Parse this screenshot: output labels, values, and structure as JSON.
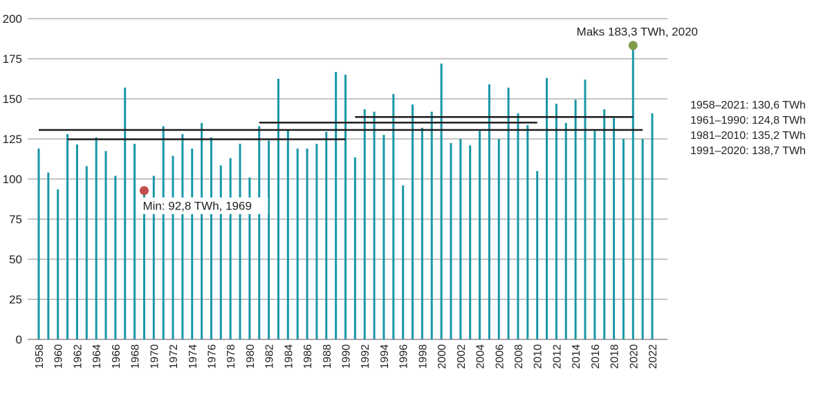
{
  "chart_data": {
    "type": "bar",
    "title": "",
    "xlabel": "",
    "ylabel": "",
    "ylim": [
      0,
      200
    ],
    "yticks": [
      0,
      25,
      50,
      75,
      100,
      125,
      150,
      175,
      200
    ],
    "grid": true,
    "x": [
      1958,
      1959,
      1960,
      1961,
      1962,
      1963,
      1964,
      1965,
      1966,
      1967,
      1968,
      1969,
      1970,
      1971,
      1972,
      1973,
      1974,
      1975,
      1976,
      1977,
      1978,
      1979,
      1980,
      1981,
      1982,
      1983,
      1984,
      1985,
      1986,
      1987,
      1988,
      1989,
      1990,
      1991,
      1992,
      1993,
      1994,
      1995,
      1996,
      1997,
      1998,
      1999,
      2000,
      2001,
      2002,
      2003,
      2004,
      2005,
      2006,
      2007,
      2008,
      2009,
      2010,
      2011,
      2012,
      2013,
      2014,
      2015,
      2016,
      2017,
      2018,
      2019,
      2020,
      2021,
      2022
    ],
    "values": [
      119,
      104,
      93.5,
      128,
      121.5,
      108,
      126,
      117.5,
      102,
      157,
      122,
      92.8,
      102,
      133,
      114.5,
      128,
      119,
      135,
      126,
      108.5,
      113,
      122,
      101,
      133,
      124,
      162.5,
      130.5,
      119,
      119,
      122,
      129.5,
      166.8,
      165,
      113.5,
      143.5,
      142,
      127.5,
      153,
      96,
      146.5,
      132,
      142,
      172,
      122.4,
      125,
      121,
      130,
      159,
      125,
      157,
      141,
      133.6,
      105,
      163,
      147,
      135,
      149.5,
      162,
      130,
      143.5,
      138,
      125,
      183.3,
      125,
      141
    ],
    "xtick_labels": [
      "1958",
      "1960",
      "1962",
      "1964",
      "1966",
      "1968",
      "1970",
      "1972",
      "1974",
      "1976",
      "1978",
      "1980",
      "1982",
      "1984",
      "1986",
      "1988",
      "1990",
      "1992",
      "1994",
      "1996",
      "1998",
      "2000",
      "2002",
      "2004",
      "2006",
      "2008",
      "2010",
      "2012",
      "2014",
      "2016",
      "2018",
      "2020",
      "2022"
    ],
    "bar_color": "#1797a6",
    "reference_lines": [
      {
        "label": "1958–2021: 130,6 TWh",
        "from": 1958,
        "to": 2021,
        "value": 130.6
      },
      {
        "label": "1961–1990: 124,8 TWh",
        "from": 1961,
        "to": 1990,
        "value": 124.8
      },
      {
        "label": "1981–2010: 135,2 TWh",
        "from": 1981,
        "to": 2010,
        "value": 135.2
      },
      {
        "label": "1991–2020: 138,7 TWh",
        "from": 1991,
        "to": 2020,
        "value": 138.7
      }
    ],
    "annotations": [
      {
        "label": "Min: 92,8 TWh, 1969",
        "year": 1969,
        "value": 92.8,
        "color": "#c0504d"
      },
      {
        "label": "Maks 183,3 TWh, 2020",
        "year": 2020,
        "value": 183.3,
        "color": "#7f9a48"
      }
    ],
    "legend_position": "right"
  }
}
